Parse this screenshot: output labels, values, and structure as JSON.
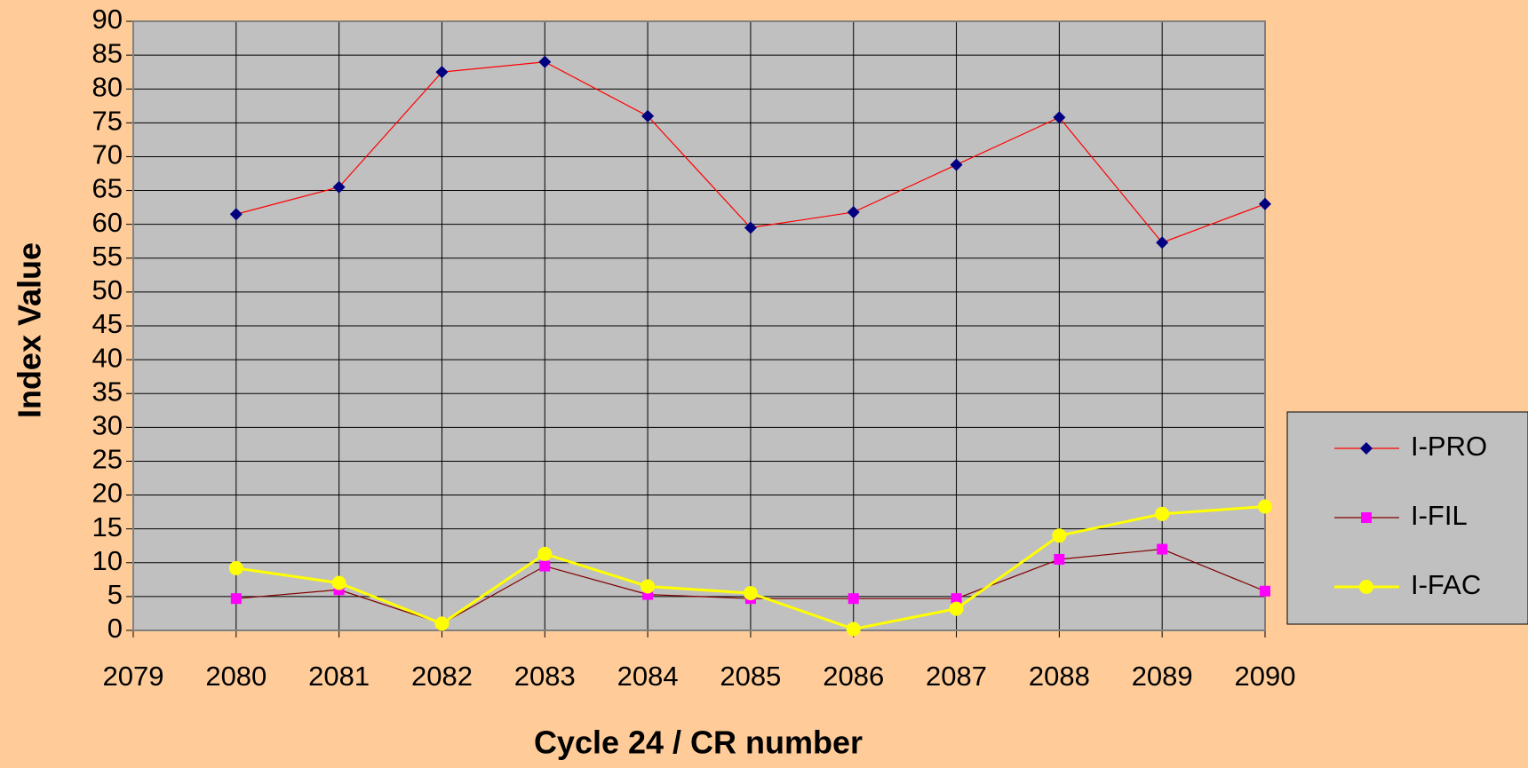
{
  "chart_data": {
    "type": "line",
    "x_label": "Cycle 24 /  CR number",
    "y_label": "Index Value",
    "x": [
      2080,
      2081,
      2082,
      2083,
      2084,
      2085,
      2086,
      2087,
      2088,
      2089,
      2090
    ],
    "xlim": [
      2079,
      2090
    ],
    "xticks": [
      2079,
      2080,
      2081,
      2082,
      2083,
      2084,
      2085,
      2086,
      2087,
      2088,
      2089,
      2090
    ],
    "ylim": [
      0,
      90
    ],
    "yticks": [
      0,
      5,
      10,
      15,
      20,
      25,
      30,
      35,
      40,
      45,
      50,
      55,
      60,
      65,
      70,
      75,
      80,
      85,
      90
    ],
    "grid": true,
    "legend": "right",
    "series": [
      {
        "name": "I-PRO",
        "color": "#ff0000",
        "marker": "diamond",
        "marker_color": "#000080",
        "values": [
          61.5,
          65.5,
          82.5,
          84,
          76,
          59.5,
          61.8,
          68.8,
          75.8,
          57.3,
          63
        ]
      },
      {
        "name": "I-FIL",
        "color": "#800000",
        "marker": "square",
        "marker_color": "#ff00ff",
        "values": [
          4.7,
          6,
          1,
          9.5,
          5.3,
          4.7,
          4.7,
          4.7,
          10.5,
          12,
          5.8
        ]
      },
      {
        "name": "I-FAC",
        "color": "#ffff00",
        "marker": "circle",
        "marker_color": "#ffff00",
        "values": [
          9.2,
          7,
          1,
          11.3,
          6.5,
          5.5,
          0.2,
          3.2,
          14,
          17.2,
          18.3
        ]
      }
    ]
  }
}
